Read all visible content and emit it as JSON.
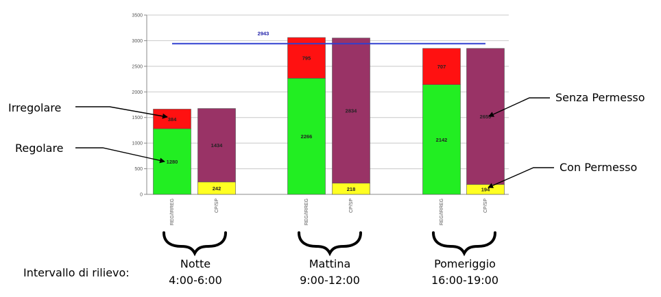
{
  "chart_data": {
    "type": "bar",
    "stacked": true,
    "ylim": [
      0,
      3500
    ],
    "yticks": [
      0,
      500,
      1000,
      1500,
      2000,
      2500,
      3000,
      3500
    ],
    "grid": true,
    "groups": [
      {
        "title": "Notte",
        "time": "4:00-6:00",
        "bars": [
          {
            "category": "REG/IRREG",
            "segments": [
              {
                "series": "Regolare",
                "value": 1280,
                "label": "1280"
              },
              {
                "series": "Irregolare",
                "value": 384,
                "label": "384"
              }
            ]
          },
          {
            "category": "CP/SP",
            "segments": [
              {
                "series": "Con Permesso",
                "value": 242,
                "label": "242"
              },
              {
                "series": "Senza Permesso",
                "value": 1434,
                "label": "1434"
              }
            ]
          }
        ]
      },
      {
        "title": "Mattina",
        "time": "9:00-12:00",
        "bars": [
          {
            "category": "REG/IRREG",
            "segments": [
              {
                "series": "Regolare",
                "value": 2266,
                "label": "2266"
              },
              {
                "series": "Irregolare",
                "value": 795,
                "label": "795"
              }
            ]
          },
          {
            "category": "CP/SP",
            "segments": [
              {
                "series": "Con Permesso",
                "value": 218,
                "label": "218"
              },
              {
                "series": "Senza Permesso",
                "value": 2834,
                "label": "2834"
              }
            ]
          }
        ]
      },
      {
        "title": "Pomeriggio",
        "time": "16:00-19:00",
        "bars": [
          {
            "category": "REG/IRREG",
            "segments": [
              {
                "series": "Regolare",
                "value": 2142,
                "label": "2142"
              },
              {
                "series": "Irregolare",
                "value": 707,
                "label": "707"
              }
            ]
          },
          {
            "category": "CP/SP",
            "segments": [
              {
                "series": "Con Permesso",
                "value": 194,
                "label": "194"
              },
              {
                "series": "Senza Permesso",
                "value": 2655,
                "label": "2655"
              }
            ]
          }
        ]
      }
    ],
    "reference_line": {
      "value": 2943,
      "label": "2943",
      "color": "#2f3fd0"
    },
    "colors": {
      "Regolare": "#22ee22",
      "Irregolare": "#ff1111",
      "Con Permesso": "#ffff22",
      "Senza Permesso": "#993366",
      "axis": "#888888",
      "grid": "#c8c8c8"
    }
  },
  "annotations": {
    "irregolare": "Irregolare",
    "regolare": "Regolare",
    "senza_permesso": "Senza Permesso",
    "con_permesso": "Con Permesso",
    "intervallo": "Intervallo di rilievo:"
  }
}
